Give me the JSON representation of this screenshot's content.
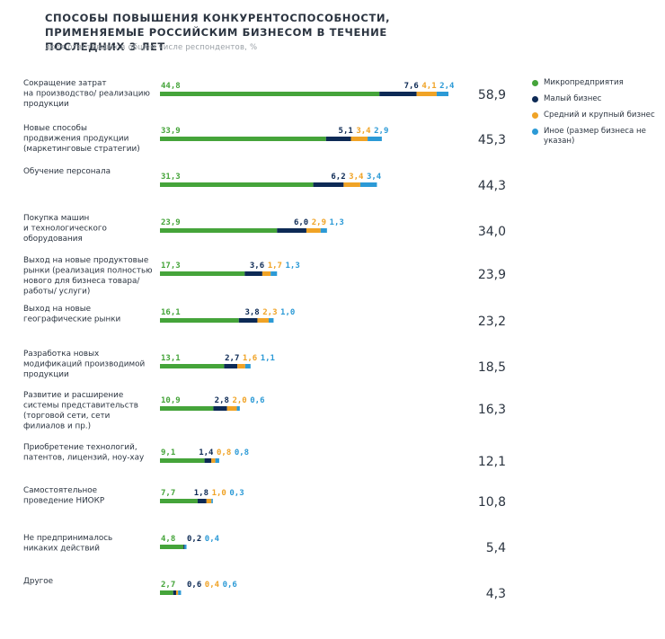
{
  "header": {
    "title": "СПОСОБЫ ПОВЫШЕНИЯ КОНКУРЕНТОСПОСОБНОСТИ, ПРИМЕНЯЕМЫЕ РОССИЙСКИМ БИЗНЕСОМ В ТЕЧЕНИЕ ПОСЛЕДНИХ 3 ЛЕТ",
    "subtitle": "доля ответивших в общем числе респондентов, %"
  },
  "colors": {
    "micro": "#45a43a",
    "small": "#0d2a55",
    "medium_large": "#f0a326",
    "other": "#2c9ad6"
  },
  "chart_data": {
    "type": "bar",
    "orientation": "horizontal",
    "stacked": true,
    "title": "СПОСОБЫ ПОВЫШЕНИЯ КОНКУРЕНТОСПОСОБНОСТИ, ПРИМЕНЯЕМЫЕ РОССИЙСКИМ БИЗНЕСОМ В ТЕЧЕНИЕ ПОСЛЕДНИХ 3 ЛЕТ",
    "subtitle": "доля ответивших в общем числе респондентов, %",
    "legend_position": "right",
    "categories": [
      [
        "Сокращение затрат",
        "на производство/ реализацию",
        "продукции"
      ],
      [
        "Новые способы",
        "продвижения продукции",
        "(маркетинговые стратегии)"
      ],
      [
        "Обучение персонала"
      ],
      [
        "Покупка машин",
        "и технологического",
        "оборудования"
      ],
      [
        "Выход на новые продуктовые",
        "рынки (реализация полностью",
        "нового для бизнеса товара/",
        "работы/ услуги)"
      ],
      [
        "Выход на новые",
        "географические рынки"
      ],
      [
        "Разработка новых",
        "модификаций производимой",
        "продукции"
      ],
      [
        "Развитие и расширение",
        "системы представительств",
        "(торговой сети, сети",
        "филиалов и пр.)"
      ],
      [
        "Приобретение технологий,",
        "патентов, лицензий, ноу-хау"
      ],
      [
        "Самостоятельное",
        "проведение НИОКР"
      ],
      [
        "Не предпринималось",
        "никаких действий"
      ],
      [
        "Другое"
      ]
    ],
    "series": [
      {
        "name": "Микропредприятия",
        "color": "#45a43a",
        "values": [
          44.8,
          33.9,
          31.3,
          23.9,
          17.3,
          16.1,
          13.1,
          10.9,
          9.1,
          7.7,
          4.8,
          2.7
        ],
        "labels": [
          "44,8",
          "33,9",
          "31,3",
          "23,9",
          "17,3",
          "16,1",
          "13,1",
          "10,9",
          "9,1",
          "7,7",
          "4,8",
          "2,7"
        ]
      },
      {
        "name": "Малый бизнес",
        "color": "#0d2a55",
        "values": [
          7.6,
          5.1,
          6.2,
          6.0,
          3.6,
          3.8,
          2.7,
          2.8,
          1.4,
          1.8,
          0.2,
          0.6
        ],
        "labels": [
          "7,6",
          "5,1",
          "6,2",
          "6,0",
          "3,6",
          "3,8",
          "2,7",
          "2,8",
          "1,4",
          "1,8",
          "0,2",
          "0,6"
        ]
      },
      {
        "name": "Средний и крупный бизнес",
        "color": "#f0a326",
        "values": [
          4.1,
          3.4,
          3.4,
          2.9,
          1.7,
          2.3,
          1.6,
          2.0,
          0.8,
          1.0,
          0.0,
          0.4
        ],
        "labels": [
          "4,1",
          "3,4",
          "3,4",
          "2,9",
          "1,7",
          "2,3",
          "1,6",
          "2,0",
          "0,8",
          "1,0",
          "",
          "0,4"
        ]
      },
      {
        "name": "Иное (размер бизнеса не указан)",
        "color": "#2c9ad6",
        "values": [
          2.4,
          2.9,
          3.4,
          1.3,
          1.3,
          1.0,
          1.1,
          0.6,
          0.8,
          0.3,
          0.4,
          0.6
        ],
        "labels": [
          "2,4",
          "2,9",
          "3,4",
          "1,3",
          "1,3",
          "1,0",
          "1,1",
          "0,6",
          "0,8",
          "0,3",
          "0,4",
          "0,6"
        ]
      }
    ],
    "totals": [
      58.9,
      45.3,
      44.3,
      34.0,
      23.9,
      23.2,
      18.5,
      16.3,
      12.1,
      10.8,
      5.4,
      4.3
    ],
    "total_labels": [
      "58,9",
      "45,3",
      "44,3",
      "34,0",
      "23,9",
      "23,2",
      "18,5",
      "16,3",
      "12,1",
      "10,8",
      "5,4",
      "4,3"
    ],
    "legend": [
      {
        "label": "Микропредприятия",
        "color": "#45a43a"
      },
      {
        "label": "Малый бизнес",
        "color": "#0d2a55"
      },
      {
        "label": "Средний и крупный бизнес",
        "color": "#f0a326"
      },
      {
        "label": "Иное (размер бизнеса не указан)",
        "color": "#2c9ad6"
      }
    ]
  }
}
